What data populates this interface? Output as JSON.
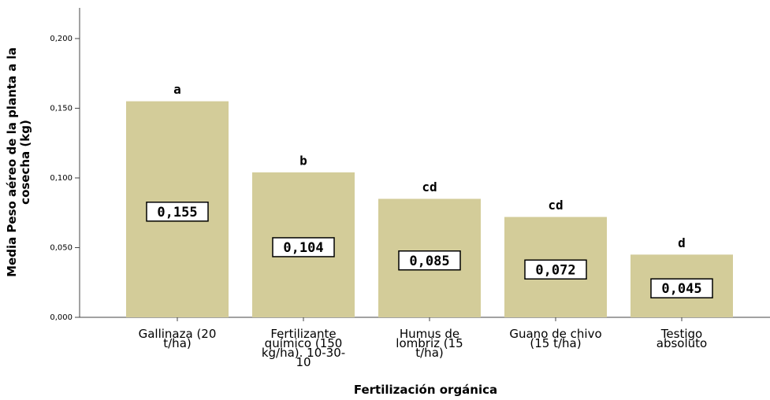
{
  "chart_data": {
    "type": "bar",
    "ylabel": "Media Peso aéreo de la planta a la\ncosecha (kg)",
    "xlabel": "Fertilización orgánica",
    "categories": [
      "Gallinaza (20\nt/ha)",
      "Fertilizante\nquímico (150\nkg/ha). 10-30-\n10",
      "Humus de\nlombriz (15\nt/ha)",
      "Guano de chivo\n(15 t/ha)",
      "Testigo\nabsoluto"
    ],
    "values": [
      0.155,
      0.104,
      0.085,
      0.072,
      0.045
    ],
    "value_labels": [
      "0,155",
      "0,104",
      "0,085",
      "0,072",
      "0,045"
    ],
    "annotations": [
      "a",
      "b",
      "cd",
      "cd",
      "d"
    ],
    "color": "#d3cc99",
    "ylim": [
      0,
      0.222
    ],
    "yticks": [
      {
        "value": 0,
        "label": "0,000"
      },
      {
        "value": 0.05,
        "label": "0,050"
      },
      {
        "value": 0.1,
        "label": "0,100"
      },
      {
        "value": 0.15,
        "label": "0,150"
      },
      {
        "value": 0.2,
        "label": "0,200"
      }
    ]
  }
}
